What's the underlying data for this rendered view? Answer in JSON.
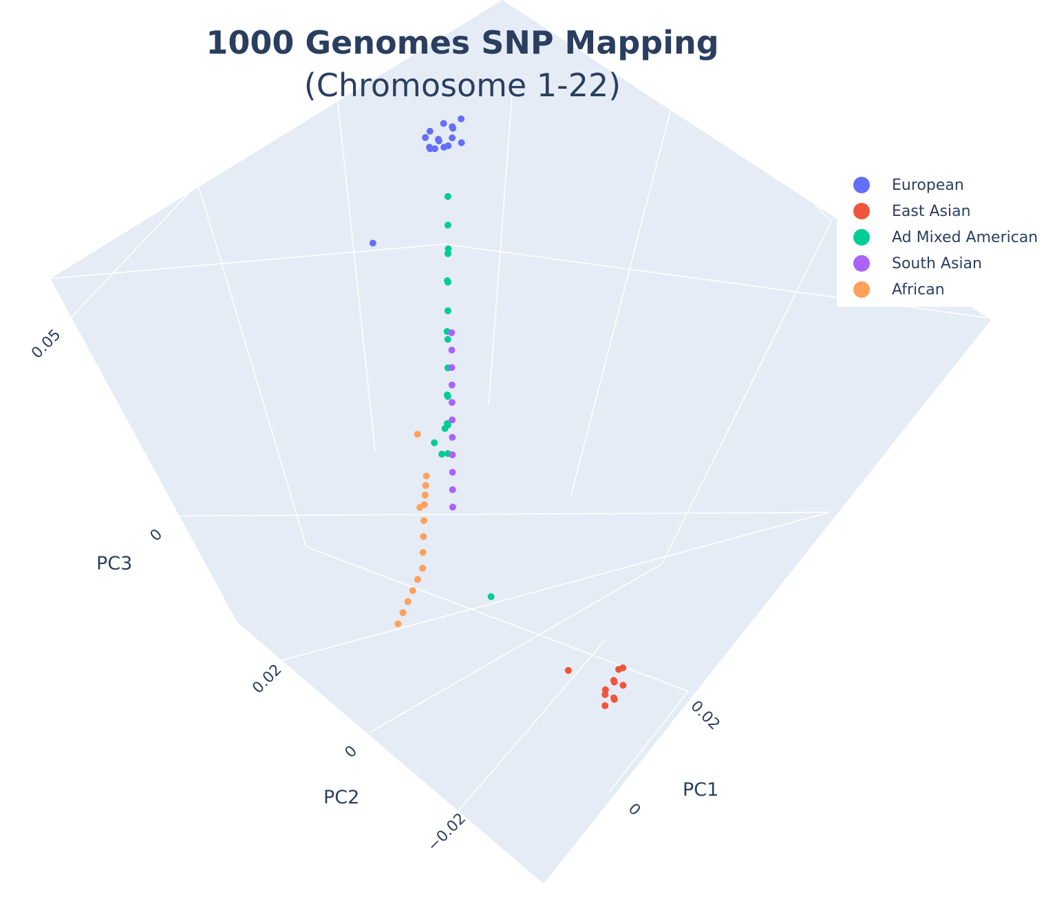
{
  "chart_data": {
    "type": "scatter",
    "dimensions": 3,
    "title": "1000 Genomes SNP Mapping",
    "subtitle": "(Chromosome 1-22)",
    "axes": {
      "x": {
        "label": "PC1",
        "ticks": [
          "0",
          "0.02"
        ]
      },
      "y": {
        "label": "PC2",
        "ticks": [
          "−0.02",
          "0",
          "0.02"
        ]
      },
      "z": {
        "label": "PC3",
        "ticks": [
          "0",
          "0.05"
        ]
      }
    },
    "grid": true,
    "legend_position": "right",
    "series": [
      {
        "name": "European",
        "color": "#636efa",
        "points": [
          [
            0.025,
            0.025,
            0.02
          ],
          [
            0.027,
            0.024,
            0.021
          ],
          [
            0.024,
            0.026,
            0.019
          ],
          [
            0.026,
            0.025,
            0.018
          ],
          [
            0.028,
            0.023,
            0.022
          ],
          [
            0.025,
            0.027,
            0.02
          ],
          [
            0.023,
            0.025,
            0.021
          ],
          [
            0.026,
            0.024,
            0.019
          ],
          [
            0.027,
            0.026,
            0.02
          ],
          [
            0.024,
            0.024,
            0.022
          ],
          [
            0.025,
            0.026,
            0.018
          ],
          [
            0.026,
            0.023,
            0.021
          ],
          [
            0.028,
            0.025,
            0.019
          ],
          [
            0.024,
            0.027,
            0.02
          ],
          [
            0.027,
            0.022,
            0.02
          ],
          [
            0.015,
            0.03,
            0.01
          ]
        ]
      },
      {
        "name": "East Asian",
        "color": "#ef553b",
        "points": [
          [
            0.01,
            -0.028,
            -0.01
          ],
          [
            0.011,
            -0.027,
            -0.012
          ],
          [
            0.009,
            -0.029,
            -0.011
          ],
          [
            0.01,
            -0.026,
            -0.013
          ],
          [
            0.012,
            -0.028,
            -0.01
          ],
          [
            0.009,
            -0.027,
            -0.012
          ],
          [
            0.011,
            -0.029,
            -0.011
          ],
          [
            0.01,
            -0.028,
            -0.013
          ],
          [
            0.012,
            -0.027,
            -0.011
          ],
          [
            0.008,
            -0.028,
            -0.012
          ],
          [
            0.006,
            -0.022,
            -0.009
          ]
        ]
      },
      {
        "name": "Ad Mixed American",
        "color": "#00cc96",
        "points": [
          [
            0.022,
            0.02,
            0.018
          ],
          [
            0.02,
            0.018,
            0.017
          ],
          [
            0.018,
            0.016,
            0.016
          ],
          [
            0.016,
            0.014,
            0.015
          ],
          [
            0.014,
            0.012,
            0.014
          ],
          [
            0.012,
            0.01,
            0.013
          ],
          [
            0.01,
            0.008,
            0.012
          ],
          [
            0.008,
            0.006,
            0.011
          ],
          [
            0.006,
            0.004,
            0.01
          ],
          [
            0.004,
            0.002,
            0.009
          ],
          [
            0.019,
            0.017,
            0.015
          ],
          [
            0.015,
            0.013,
            0.017
          ],
          [
            0.011,
            0.009,
            0.016
          ],
          [
            0.007,
            0.005,
            0.013
          ],
          [
            0.005,
            0.003,
            0.012
          ],
          [
            0.0,
            -0.002,
            0.02
          ],
          [
            -0.005,
            -0.005,
            0.025
          ],
          [
            -0.008,
            -0.01,
            0.03
          ],
          [
            0.003,
            -0.008,
            -0.005
          ]
        ]
      },
      {
        "name": "South Asian",
        "color": "#ab63fa",
        "points": [
          [
            0.02,
            0.018,
            0.0
          ],
          [
            0.019,
            0.017,
            -0.001
          ],
          [
            0.018,
            0.016,
            -0.002
          ],
          [
            0.017,
            0.015,
            -0.003
          ],
          [
            0.016,
            0.014,
            -0.004
          ],
          [
            0.015,
            0.013,
            -0.005
          ],
          [
            0.014,
            0.012,
            -0.006
          ],
          [
            0.013,
            0.011,
            -0.007
          ],
          [
            0.012,
            0.01,
            -0.008
          ],
          [
            0.011,
            0.009,
            -0.009
          ],
          [
            0.01,
            0.008,
            -0.01
          ]
        ]
      },
      {
        "name": "African",
        "color": "#ffa15a",
        "points": [
          [
            -0.02,
            -0.018,
            0.03
          ],
          [
            -0.022,
            -0.019,
            0.031
          ],
          [
            -0.024,
            -0.02,
            0.032
          ],
          [
            -0.026,
            -0.021,
            0.033
          ],
          [
            -0.028,
            -0.022,
            0.034
          ],
          [
            -0.03,
            -0.023,
            0.035
          ],
          [
            -0.018,
            -0.016,
            0.029
          ],
          [
            -0.016,
            -0.014,
            0.028
          ],
          [
            -0.014,
            -0.012,
            0.027
          ],
          [
            -0.012,
            -0.01,
            0.026
          ],
          [
            -0.01,
            -0.008,
            0.024
          ],
          [
            -0.008,
            -0.006,
            0.022
          ],
          [
            -0.006,
            -0.004,
            0.02
          ],
          [
            -0.004,
            0.0,
            0.01
          ],
          [
            0.005,
            0.01,
            0.005
          ]
        ]
      }
    ]
  }
}
